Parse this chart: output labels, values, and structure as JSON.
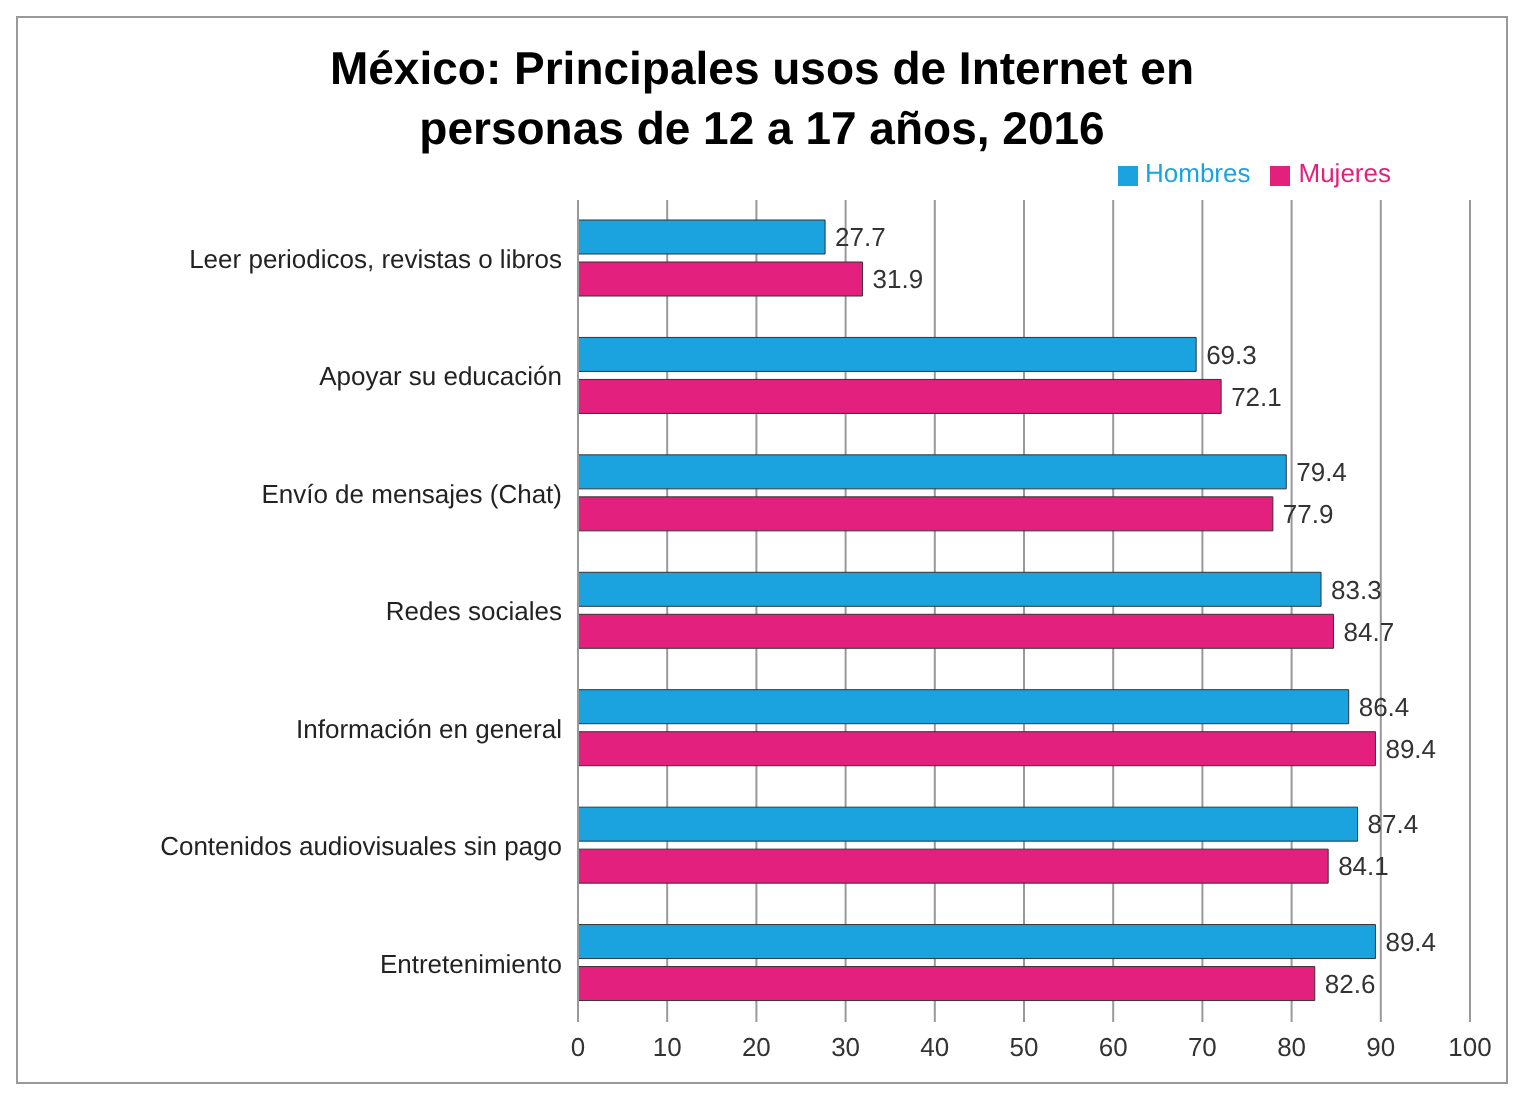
{
  "chart_data": {
    "type": "bar",
    "orientation": "horizontal",
    "title": "México: Principales usos de Internet en personas de 12 a 17 años, 2016",
    "categories": [
      "Leer periodicos, revistas o libros",
      "Apoyar su educación",
      "Envío de mensajes (Chat)",
      "Redes sociales",
      "Información en general",
      "Contenidos audiovisuales sin pago",
      "Entretenimiento"
    ],
    "series": [
      {
        "name": "Hombres",
        "color": "#1ba3e0",
        "values": [
          27.7,
          69.3,
          79.4,
          83.3,
          86.4,
          87.4,
          89.4
        ]
      },
      {
        "name": "Mujeres",
        "color": "#e4207f",
        "values": [
          31.9,
          72.1,
          77.9,
          84.7,
          89.4,
          84.1,
          82.6
        ]
      }
    ],
    "xlim": [
      0,
      100
    ],
    "xticks": [
      0,
      10,
      20,
      30,
      40,
      50,
      60,
      70,
      80,
      90,
      100
    ],
    "grid": "x",
    "legend": "top",
    "data_labels": true
  }
}
